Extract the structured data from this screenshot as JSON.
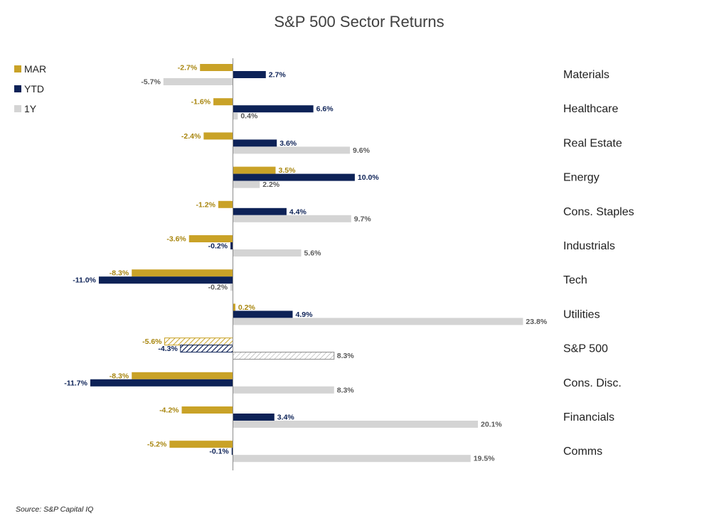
{
  "chart_data": {
    "type": "bar",
    "orientation": "horizontal",
    "title": "S&P 500 Sector Returns",
    "source": "Source: S&P Capital IQ",
    "legend_position": "top-left",
    "grid": false,
    "categories": [
      "Materials",
      "Healthcare",
      "Real Estate",
      "Energy",
      "Cons. Staples",
      "Industrials",
      "Tech",
      "Utilities",
      "S&P 500",
      "Cons. Disc.",
      "Financials",
      "Comms"
    ],
    "highlight_category": "S&P 500",
    "series": [
      {
        "name": "MAR",
        "color": "#c9a227",
        "label_color": "#a8860f",
        "values": [
          -2.7,
          -1.6,
          -2.4,
          3.5,
          -1.2,
          -3.6,
          -8.3,
          0.2,
          -5.6,
          -8.3,
          -4.2,
          -5.2
        ],
        "labels": [
          "-2.7%",
          "-1.6%",
          "-2.4%",
          "3.5%",
          "-1.2%",
          "-3.6%",
          "-8.3%",
          "0.2%",
          "-5.6%",
          "-8.3%",
          "-4.2%",
          "-5.2%"
        ]
      },
      {
        "name": "YTD",
        "color": "#0d2257",
        "label_color": "#0d2257",
        "values": [
          2.7,
          6.6,
          3.6,
          10.0,
          4.4,
          -0.2,
          -11.0,
          4.9,
          -4.3,
          -11.7,
          3.4,
          -0.1
        ],
        "labels": [
          "2.7%",
          "6.6%",
          "3.6%",
          "10.0%",
          "4.4%",
          "-0.2%",
          "-11.0%",
          "4.9%",
          "-4.3%",
          "-11.7%",
          "3.4%",
          "-0.1%"
        ]
      },
      {
        "name": "1Y",
        "color": "#d4d4d4",
        "label_color": "#595959",
        "values": [
          -5.7,
          0.4,
          9.6,
          2.2,
          9.7,
          5.6,
          -0.2,
          23.8,
          8.3,
          8.3,
          20.1,
          19.5
        ],
        "labels": [
          "-5.7%",
          "0.4%",
          "9.6%",
          "2.2%",
          "9.7%",
          "5.6%",
          "-0.2%",
          "23.8%",
          "8.3%",
          "8.3%",
          "20.1%",
          "19.5%"
        ]
      }
    ]
  }
}
